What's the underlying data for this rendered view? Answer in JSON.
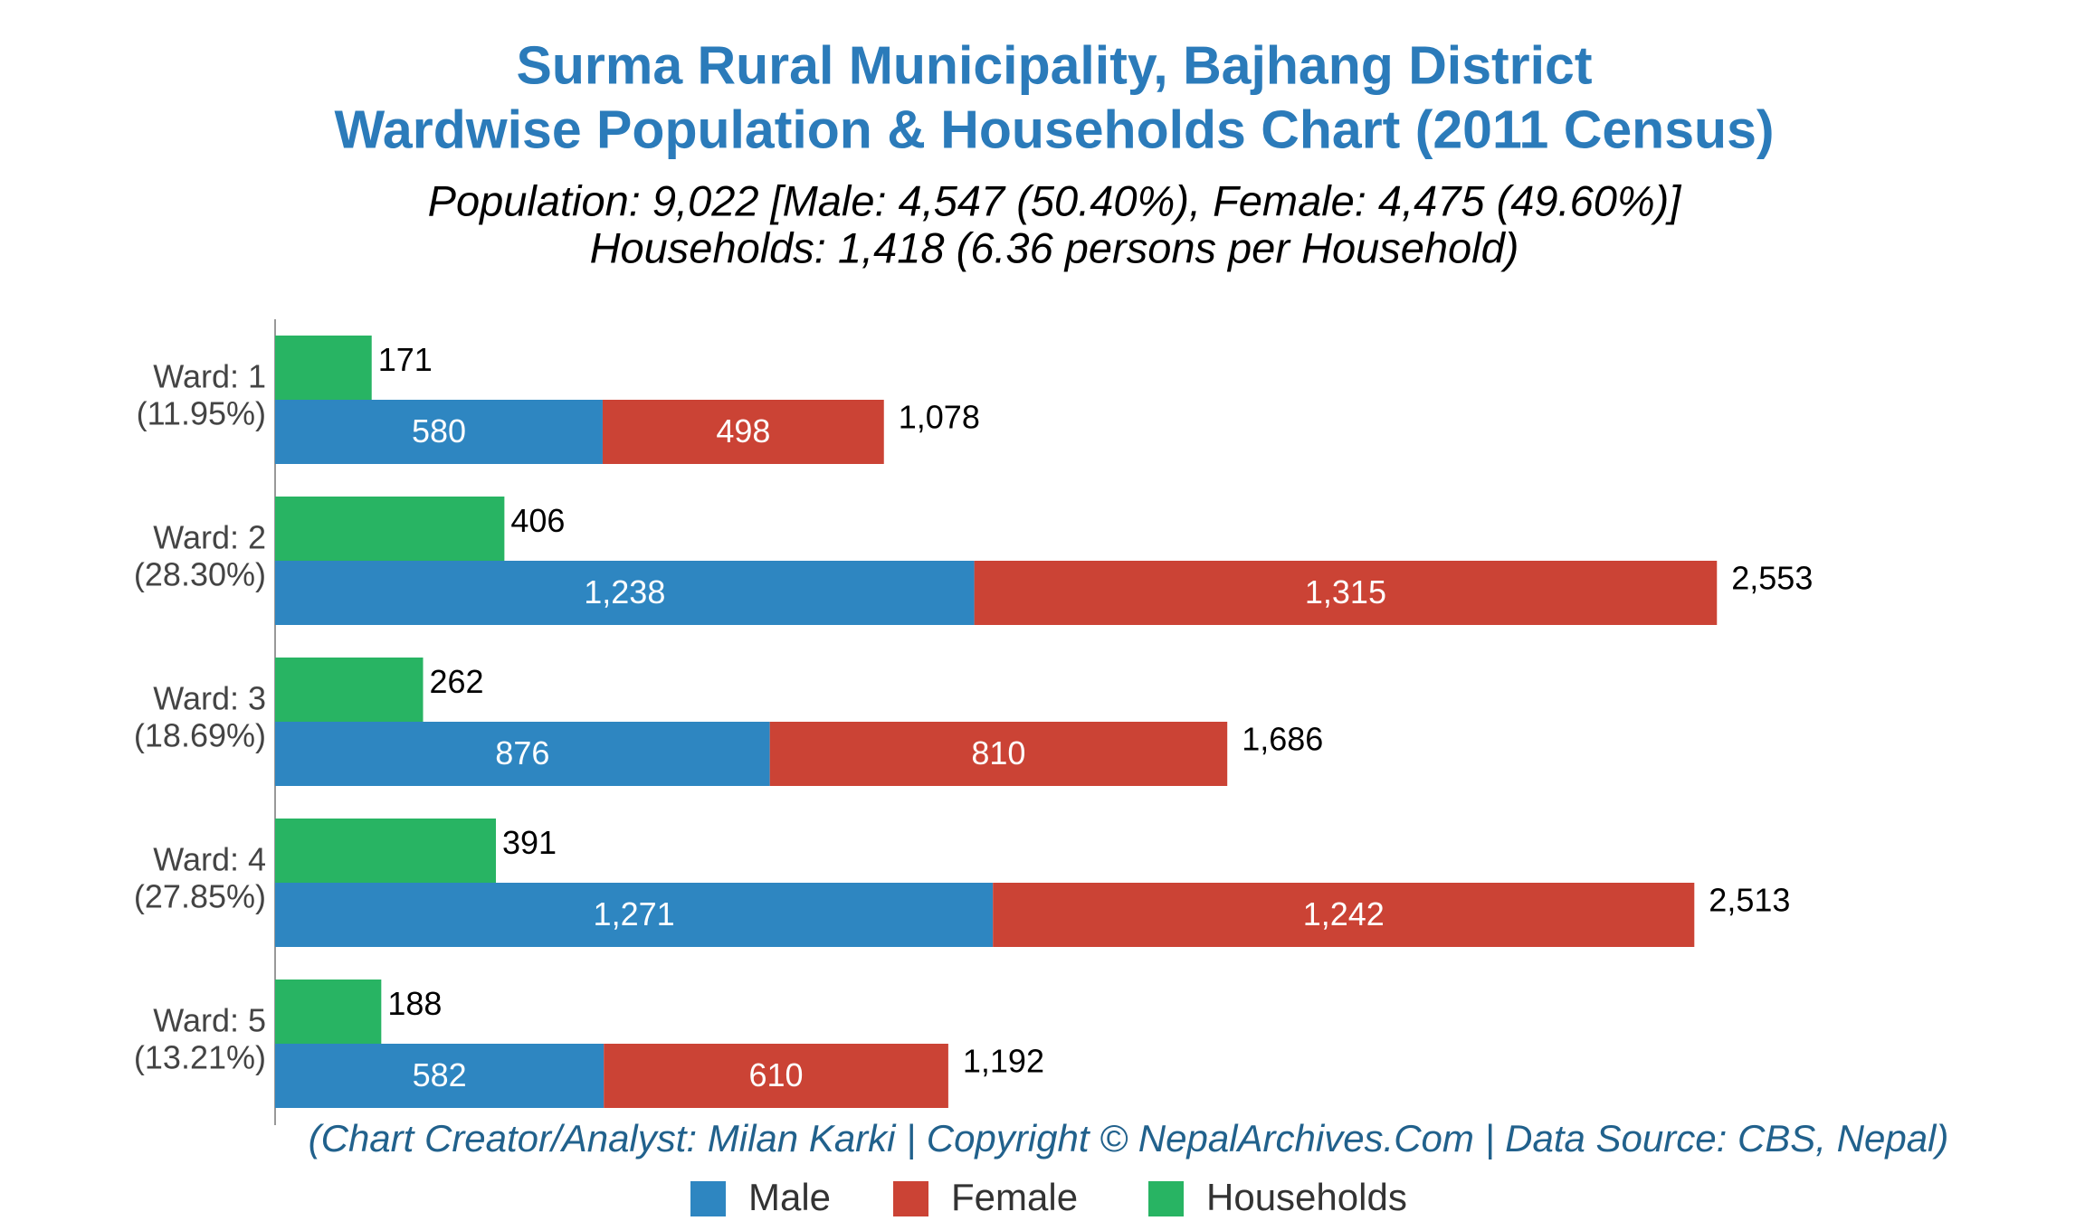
{
  "chart_data": {
    "type": "bar",
    "title": "Surma Rural Municipality, Bajhang District",
    "subtitle": "Wardwise Population & Households Chart (2011 Census)",
    "summary": [
      "Population: 9,022 [Male: 4,547 (50.40%), Female: 4,475 (49.60%)]",
      "Households: 1,418 (6.36 persons per Household)"
    ],
    "footer": "(Chart Creator/Analyst: Milan Karki | Copyright © NepalArchives.Com | Data Source: CBS, Nepal)",
    "orientation": "horizontal",
    "categories": [
      "Ward: 1",
      "Ward: 2",
      "Ward: 3",
      "Ward: 4",
      "Ward: 5"
    ],
    "category_shares": [
      "(11.95%)",
      "(28.30%)",
      "(18.69%)",
      "(27.85%)",
      "(13.21%)"
    ],
    "series": [
      {
        "name": "Male",
        "color": "#2e86c1",
        "stack": "population",
        "values": [
          580,
          1238,
          876,
          1271,
          582
        ],
        "value_labels": [
          "580",
          "1,238",
          "876",
          "1,271",
          "582"
        ]
      },
      {
        "name": "Female",
        "color": "#cb4335",
        "stack": "population",
        "values": [
          498,
          1315,
          810,
          1242,
          610
        ],
        "value_labels": [
          "498",
          "1,315",
          "810",
          "1,242",
          "610"
        ]
      },
      {
        "name": "Households",
        "color": "#28b463",
        "stack": "households",
        "values": [
          171,
          406,
          262,
          391,
          188
        ]
      }
    ],
    "total_labels": [
      "1,078",
      "2,553",
      "1,686",
      "2,513",
      "1,192"
    ],
    "xlim": [
      0,
      2700
    ]
  }
}
